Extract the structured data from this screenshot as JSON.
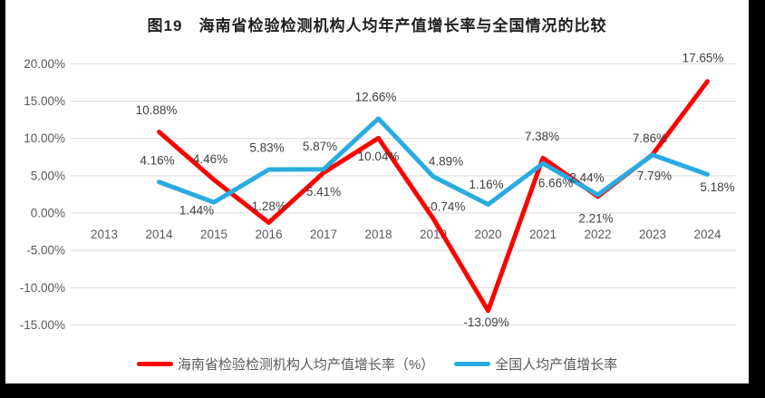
{
  "title": "图19　海南省检验检测机构人均年产值增长率与全国情况的比较",
  "colors": {
    "hainan_line": "#FF0000",
    "national_line": "#29ABE2",
    "gridline": "#D9D9D9",
    "axis_text": "#595959",
    "data_label_text": "#404040",
    "frame_border": "#000000",
    "background": "#FFFFFF"
  },
  "chart_data": {
    "type": "line",
    "title": "图19　海南省检验检测机构人均年产值增长率与全国情况的比较",
    "categories": [
      "2013",
      "2014",
      "2015",
      "2016",
      "2017",
      "2018",
      "2019",
      "2020",
      "2021",
      "2022",
      "2023",
      "2024"
    ],
    "y_axis": {
      "min": -15,
      "max": 20,
      "step": 5,
      "tick_labels": [
        "20.00%",
        "15.00%",
        "10.00%",
        "5.00%",
        "0.00%",
        "-5.00%",
        "-10.00%",
        "-15.00%"
      ],
      "grid": true
    },
    "legend_position": "bottom",
    "series": [
      {
        "name": "海南省检验检测机构人均产值增长率（%）",
        "color": "#FF0000",
        "values": [
          null,
          10.88,
          4.46,
          -1.28,
          5.41,
          10.04,
          -0.74,
          -13.09,
          7.38,
          2.21,
          7.86,
          17.65
        ],
        "labels": [
          null,
          "10.88%",
          "4.46%",
          "-1.28%",
          "5.41%",
          "10.04%",
          "-0.74%",
          "-13.09%",
          "7.38%",
          "2.21%",
          "7.86%",
          "17.65%"
        ],
        "label_offsets": [
          null,
          [
            -3,
            -24
          ],
          [
            -4,
            -23
          ],
          [
            -2,
            -18
          ],
          [
            0,
            21
          ],
          [
            0,
            20
          ],
          [
            14,
            -13
          ],
          [
            -2,
            13
          ],
          [
            -1,
            -24
          ],
          [
            -2,
            24
          ],
          [
            -3,
            -18
          ],
          [
            -5,
            -26
          ]
        ]
      },
      {
        "name": "全国人均产值增长率",
        "color": "#29ABE2",
        "values": [
          null,
          4.16,
          1.44,
          5.83,
          5.87,
          12.66,
          4.89,
          1.16,
          6.66,
          2.44,
          7.79,
          5.18
        ],
        "labels": [
          null,
          "4.16%",
          "1.44%",
          "5.83%",
          "5.87%",
          "12.66%",
          "4.89%",
          "1.16%",
          "6.66%",
          "2.44%",
          "7.79%",
          "5.18%"
        ],
        "label_offsets": [
          null,
          [
            -2,
            -24
          ],
          [
            -19,
            9
          ],
          [
            -2,
            -24
          ],
          [
            -4,
            -25
          ],
          [
            -3,
            -24
          ],
          [
            14,
            -17
          ],
          [
            -2,
            -22
          ],
          [
            14,
            22
          ],
          [
            -12,
            -19
          ],
          [
            2,
            23
          ],
          [
            11,
            14
          ]
        ]
      }
    ]
  }
}
